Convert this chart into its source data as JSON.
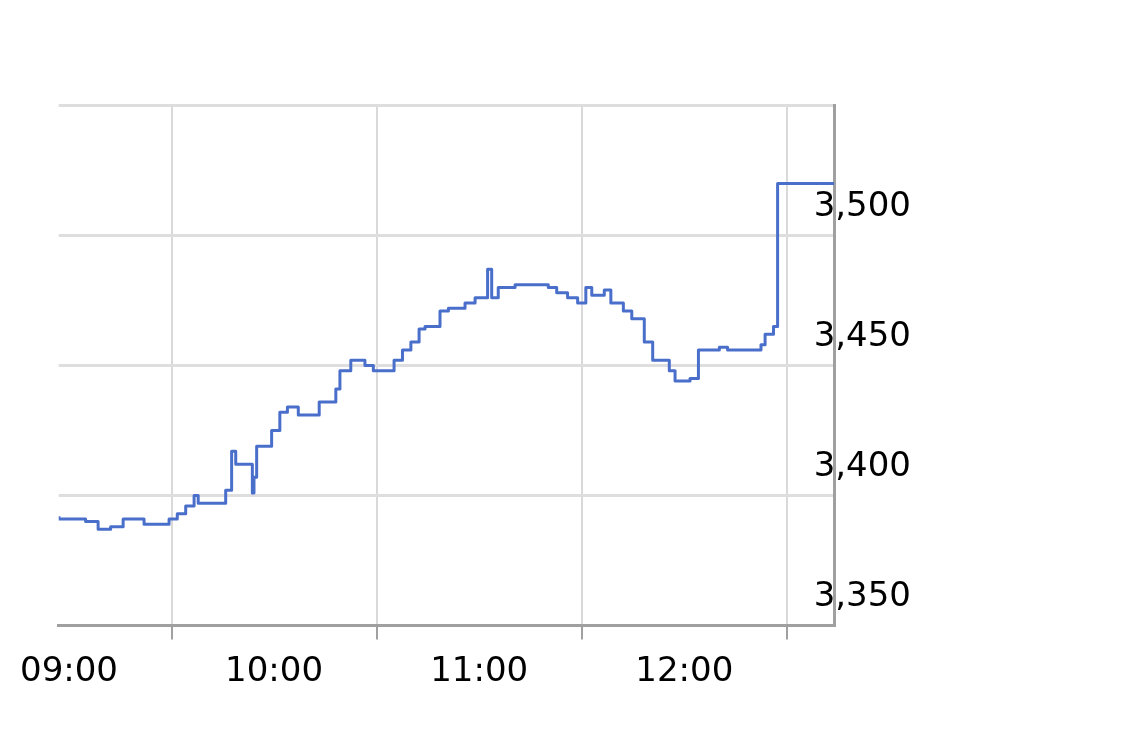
{
  "chart_data": {
    "type": "step",
    "x": [
      8.951,
      9.0,
      9.081,
      9.142,
      9.203,
      9.264,
      9.366,
      9.415,
      9.488,
      9.528,
      9.569,
      9.61,
      9.63,
      9.764,
      9.793,
      9.813,
      9.894,
      9.902,
      9.915,
      9.988,
      10.028,
      10.065,
      10.118,
      10.146,
      10.22,
      10.301,
      10.321,
      10.374,
      10.443,
      10.484,
      10.585,
      10.626,
      10.667,
      10.707,
      10.736,
      10.809,
      10.85,
      10.931,
      10.98,
      11.041,
      11.061,
      11.093,
      11.175,
      11.337,
      11.378,
      11.431,
      11.48,
      11.52,
      11.549,
      11.61,
      11.642,
      11.703,
      11.744,
      11.805,
      11.846,
      11.927,
      11.955,
      12.028,
      12.069,
      12.171,
      12.211,
      12.293,
      12.374,
      12.394,
      12.435,
      12.455,
      12.638,
      12.73
    ],
    "series": [
      {
        "color": "#4a6fcb",
        "values": [
          3392,
          3391,
          3391,
          3390,
          3387,
          3388,
          3391,
          3389,
          3389,
          3391,
          3393,
          3396,
          3400,
          3397,
          3402,
          3417,
          3412,
          3401,
          3407,
          3419,
          3425,
          3432,
          3434,
          3431,
          3431,
          3436,
          3441,
          3448,
          3452,
          3450,
          3448,
          3452,
          3456,
          3459,
          3464,
          3465,
          3471,
          3472,
          3474,
          3476,
          3487,
          3476,
          3480,
          3481,
          3480,
          3478,
          3476,
          3474,
          3480,
          3477,
          3479,
          3474,
          3471,
          3468,
          3459,
          3452,
          3448,
          3444,
          3445,
          3456,
          3457,
          3456,
          3456,
          3458,
          3462,
          3465,
          3520,
          3520
        ]
      }
    ],
    "xlim": [
      8.95,
      12.73
    ],
    "xticks": [
      {
        "value": 9,
        "label": "09:00"
      },
      {
        "value": 9.5,
        "label": null
      },
      {
        "value": 10,
        "label": "10:00"
      },
      {
        "value": 10.5,
        "label": null
      },
      {
        "value": 11,
        "label": "11:00"
      },
      {
        "value": 11.5,
        "label": null
      },
      {
        "value": 12,
        "label": "12:00"
      },
      {
        "value": 12.5,
        "label": null
      }
    ],
    "ylim": [
      3350,
      3550
    ],
    "yticks": [
      {
        "value": 3350,
        "label": "3,350"
      },
      {
        "value": 3400,
        "label": "3,400"
      },
      {
        "value": 3450,
        "label": "3,450"
      },
      {
        "value": 3500,
        "label": "3,500"
      },
      {
        "value": 3550,
        "label": null
      }
    ],
    "grid": true,
    "legend": false,
    "marker": "none",
    "line_style": "solid"
  }
}
